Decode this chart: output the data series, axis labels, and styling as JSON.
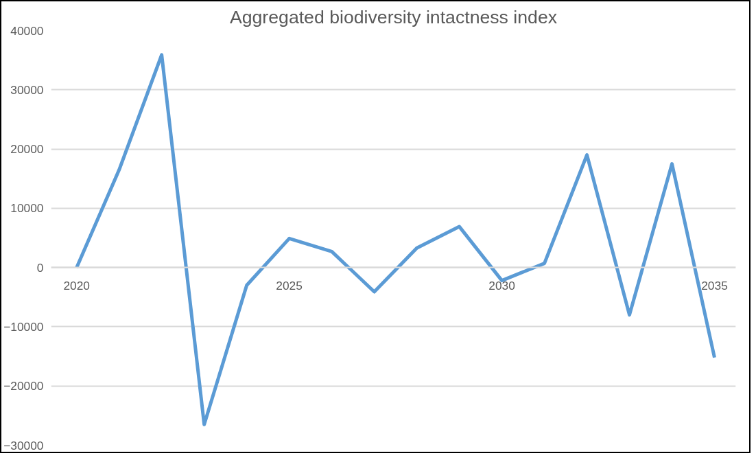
{
  "chart_data": {
    "type": "line",
    "title": "Aggregated biodiversity intactness index",
    "x": [
      2020,
      2021,
      2022,
      2023,
      2024,
      2025,
      2026,
      2027,
      2028,
      2029,
      2030,
      2031,
      2032,
      2033,
      2034,
      2035
    ],
    "series": [
      {
        "color": "#5b9bd5",
        "values": [
          0,
          16500,
          35900,
          -26500,
          -3000,
          4900,
          2700,
          -4100,
          3300,
          6900,
          -2200,
          700,
          19000,
          -8000,
          17500,
          -15200
        ]
      }
    ],
    "xlim": [
      2019.4,
      2035.5
    ],
    "xticks": [
      2020,
      2025,
      2030,
      2035
    ],
    "ylim": [
      -30000,
      40000
    ],
    "yticks": [
      -30000,
      -20000,
      -10000,
      0,
      10000,
      20000,
      30000,
      40000
    ],
    "grid": "y",
    "marker": "none",
    "line_style": "solid"
  }
}
